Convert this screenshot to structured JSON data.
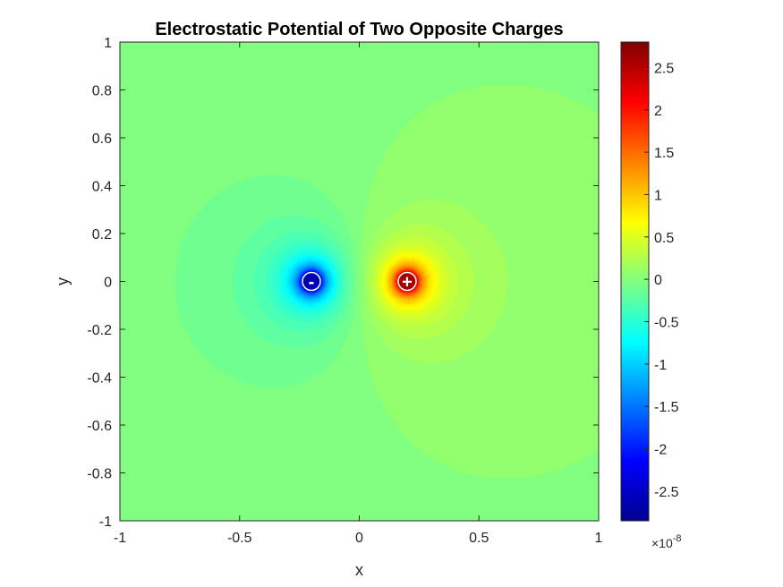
{
  "chart_data": {
    "type": "heatmap",
    "title": "Electrostatic Potential of Two Opposite Charges",
    "xlabel": "x",
    "ylabel": "y",
    "xlim": [
      -1,
      1
    ],
    "ylim": [
      -1,
      1
    ],
    "xticks": [
      "-1",
      "-0.5",
      "0",
      "0.5",
      "1"
    ],
    "yticks": [
      "1",
      "0.8",
      "0.6",
      "0.4",
      "0.2",
      "0",
      "-0.2",
      "-0.4",
      "-0.6",
      "-0.8",
      "-1"
    ],
    "colormap": "jet",
    "grid": false,
    "colorbar": {
      "range": [
        -2.85,
        2.8
      ],
      "ticks": [
        "2.5",
        "2",
        "1.5",
        "1",
        "0.5",
        "0",
        "-0.5",
        "-1",
        "-1.5",
        "-2",
        "-2.5"
      ],
      "exponent_base": "×10",
      "exponent": "-8"
    },
    "charges": [
      {
        "x": -0.2,
        "y": 0,
        "label": "-",
        "sign": "negative"
      },
      {
        "x": 0.2,
        "y": 0,
        "label": "+",
        "sign": "positive"
      }
    ]
  }
}
